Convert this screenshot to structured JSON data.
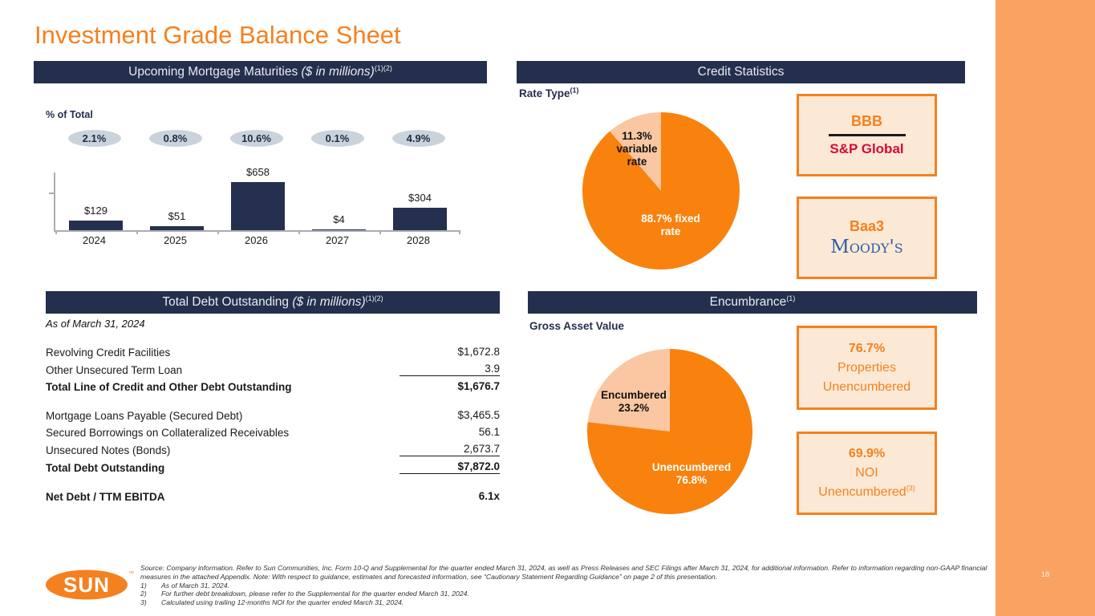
{
  "page": {
    "title": "Investment Grade Balance Sheet",
    "page_number": "18"
  },
  "colors": {
    "accent_orange": "#F5801F",
    "pie_orange": "#F8820D",
    "pie_peach": "#FAC7A2",
    "navy": "#242F4D",
    "badge_gray": "#CAD3DC",
    "sp_red": "#D6093B",
    "moodys_blue": "#2B5EA7",
    "sidebar_orange": "#FAA262",
    "bar_navy": "#25304E"
  },
  "panels": {
    "maturities": {
      "title": "Upcoming Mortgage Maturities",
      "unit": " ($ in millions)",
      "sup": "(1)(2)",
      "axis_note": "% of Total"
    },
    "credit": {
      "title": "Credit Statistics",
      "subtitle": "Rate Type",
      "subtitle_sup": "(1)"
    },
    "debt": {
      "title": "Total Debt Outstanding",
      "unit": " ($ in millions)",
      "sup": "(1)(2)",
      "as_of": "As of March 31, 2024"
    },
    "encumbrance": {
      "title": "Encumbrance",
      "sup": "(1)",
      "subtitle": "Gross Asset Value"
    }
  },
  "chart_data": [
    {
      "type": "bar",
      "title": "Upcoming Mortgage Maturities ($ in millions)",
      "categories": [
        "2024",
        "2025",
        "2026",
        "2027",
        "2028"
      ],
      "values": [
        129,
        51,
        658,
        4,
        304
      ],
      "value_labels": [
        "$129",
        "$51",
        "$658",
        "$4",
        "$304"
      ],
      "pct_of_total": [
        "2.1%",
        "0.8%",
        "10.6%",
        "0.1%",
        "4.9%"
      ],
      "xlabel": "",
      "ylabel": "% of Total",
      "ylim": [
        0,
        790
      ],
      "grid": "off",
      "legend": "none"
    },
    {
      "type": "pie",
      "title": "Rate Type",
      "slices": [
        {
          "label": "88.7% fixed rate",
          "value": 88.7,
          "color": "#F8820D"
        },
        {
          "label": "11.3% variable rate",
          "value": 11.3,
          "color": "#FAC7A2"
        }
      ]
    },
    {
      "type": "pie",
      "title": "Gross Asset Value",
      "slices": [
        {
          "label": "Unencumbered 76.8%",
          "value": 76.8,
          "color": "#F8820D"
        },
        {
          "label": "Encumbered 23.2%",
          "value": 23.2,
          "color": "#FAC7A2"
        }
      ]
    }
  ],
  "pie_labels": {
    "rate_variable": "11.3%\nvariable\nrate",
    "rate_fixed": "88.7% fixed\nrate",
    "encumbered": "Encumbered\n23.2%",
    "unencumbered": "Unencumbered\n76.8%"
  },
  "ratings": {
    "sp": {
      "rating": "BBB",
      "agency": "S&P Global"
    },
    "moodys": {
      "rating": "Baa3",
      "agency": "Moody's"
    }
  },
  "stats": {
    "properties": {
      "value": "76.7%",
      "line2": "Properties",
      "line3": "Unencumbered",
      "sup": ""
    },
    "noi": {
      "value": "69.9%",
      "line2": "NOI",
      "line3": "Unencumbered",
      "sup": "(3)"
    }
  },
  "debt_table": {
    "rows": [
      {
        "label": "Revolving Credit Facilities",
        "value": "$1,672.8",
        "bold": false,
        "underline": false,
        "gap_before": false
      },
      {
        "label": "Other Unsecured Term Loan",
        "value": "3.9",
        "bold": false,
        "underline": true,
        "gap_before": false
      },
      {
        "label": "Total Line of Credit and Other Debt Outstanding",
        "value": "$1,676.7",
        "bold": true,
        "underline": false,
        "gap_before": false
      },
      {
        "label": "Mortgage Loans Payable (Secured Debt)",
        "value": "$3,465.5",
        "bold": false,
        "underline": false,
        "gap_before": true
      },
      {
        "label": "Secured Borrowings on Collateralized Receivables",
        "value": "56.1",
        "bold": false,
        "underline": false,
        "gap_before": false
      },
      {
        "label": "Unsecured Notes (Bonds)",
        "value": "2,673.7",
        "bold": false,
        "underline": true,
        "gap_before": false
      },
      {
        "label": "Total Debt Outstanding",
        "value": "$7,872.0",
        "bold": true,
        "underline": true,
        "gap_before": false
      },
      {
        "label": "Net Debt / TTM EBITDA",
        "value": "6.1x",
        "bold": true,
        "underline": false,
        "gap_before": true
      }
    ]
  },
  "footer": {
    "logo_text": "SUN",
    "logo_tm": "™",
    "source_text": "Source: Company information. Refer to Sun Communities, Inc. Form 10-Q and Supplemental for the quarter ended March 31, 2024, as well as Press Releases and SEC Filings after March 31, 2024, for additional information. Refer to information regarding non-GAAP financial measures in the attached Appendix. Note: With respect to guidance, estimates and forecasted information, see “Cautionary Statement Regarding Guidance” on page 2 of this presentation.",
    "notes": [
      {
        "num": "1)",
        "text": "As of March 31, 2024."
      },
      {
        "num": "2)",
        "text": "For further debt breakdown, please refer to the Supplemental for the quarter ended March 31, 2024."
      },
      {
        "num": "3)",
        "text": "Calculated using trailing 12-months NOI for the quarter ended March 31, 2024."
      }
    ]
  }
}
